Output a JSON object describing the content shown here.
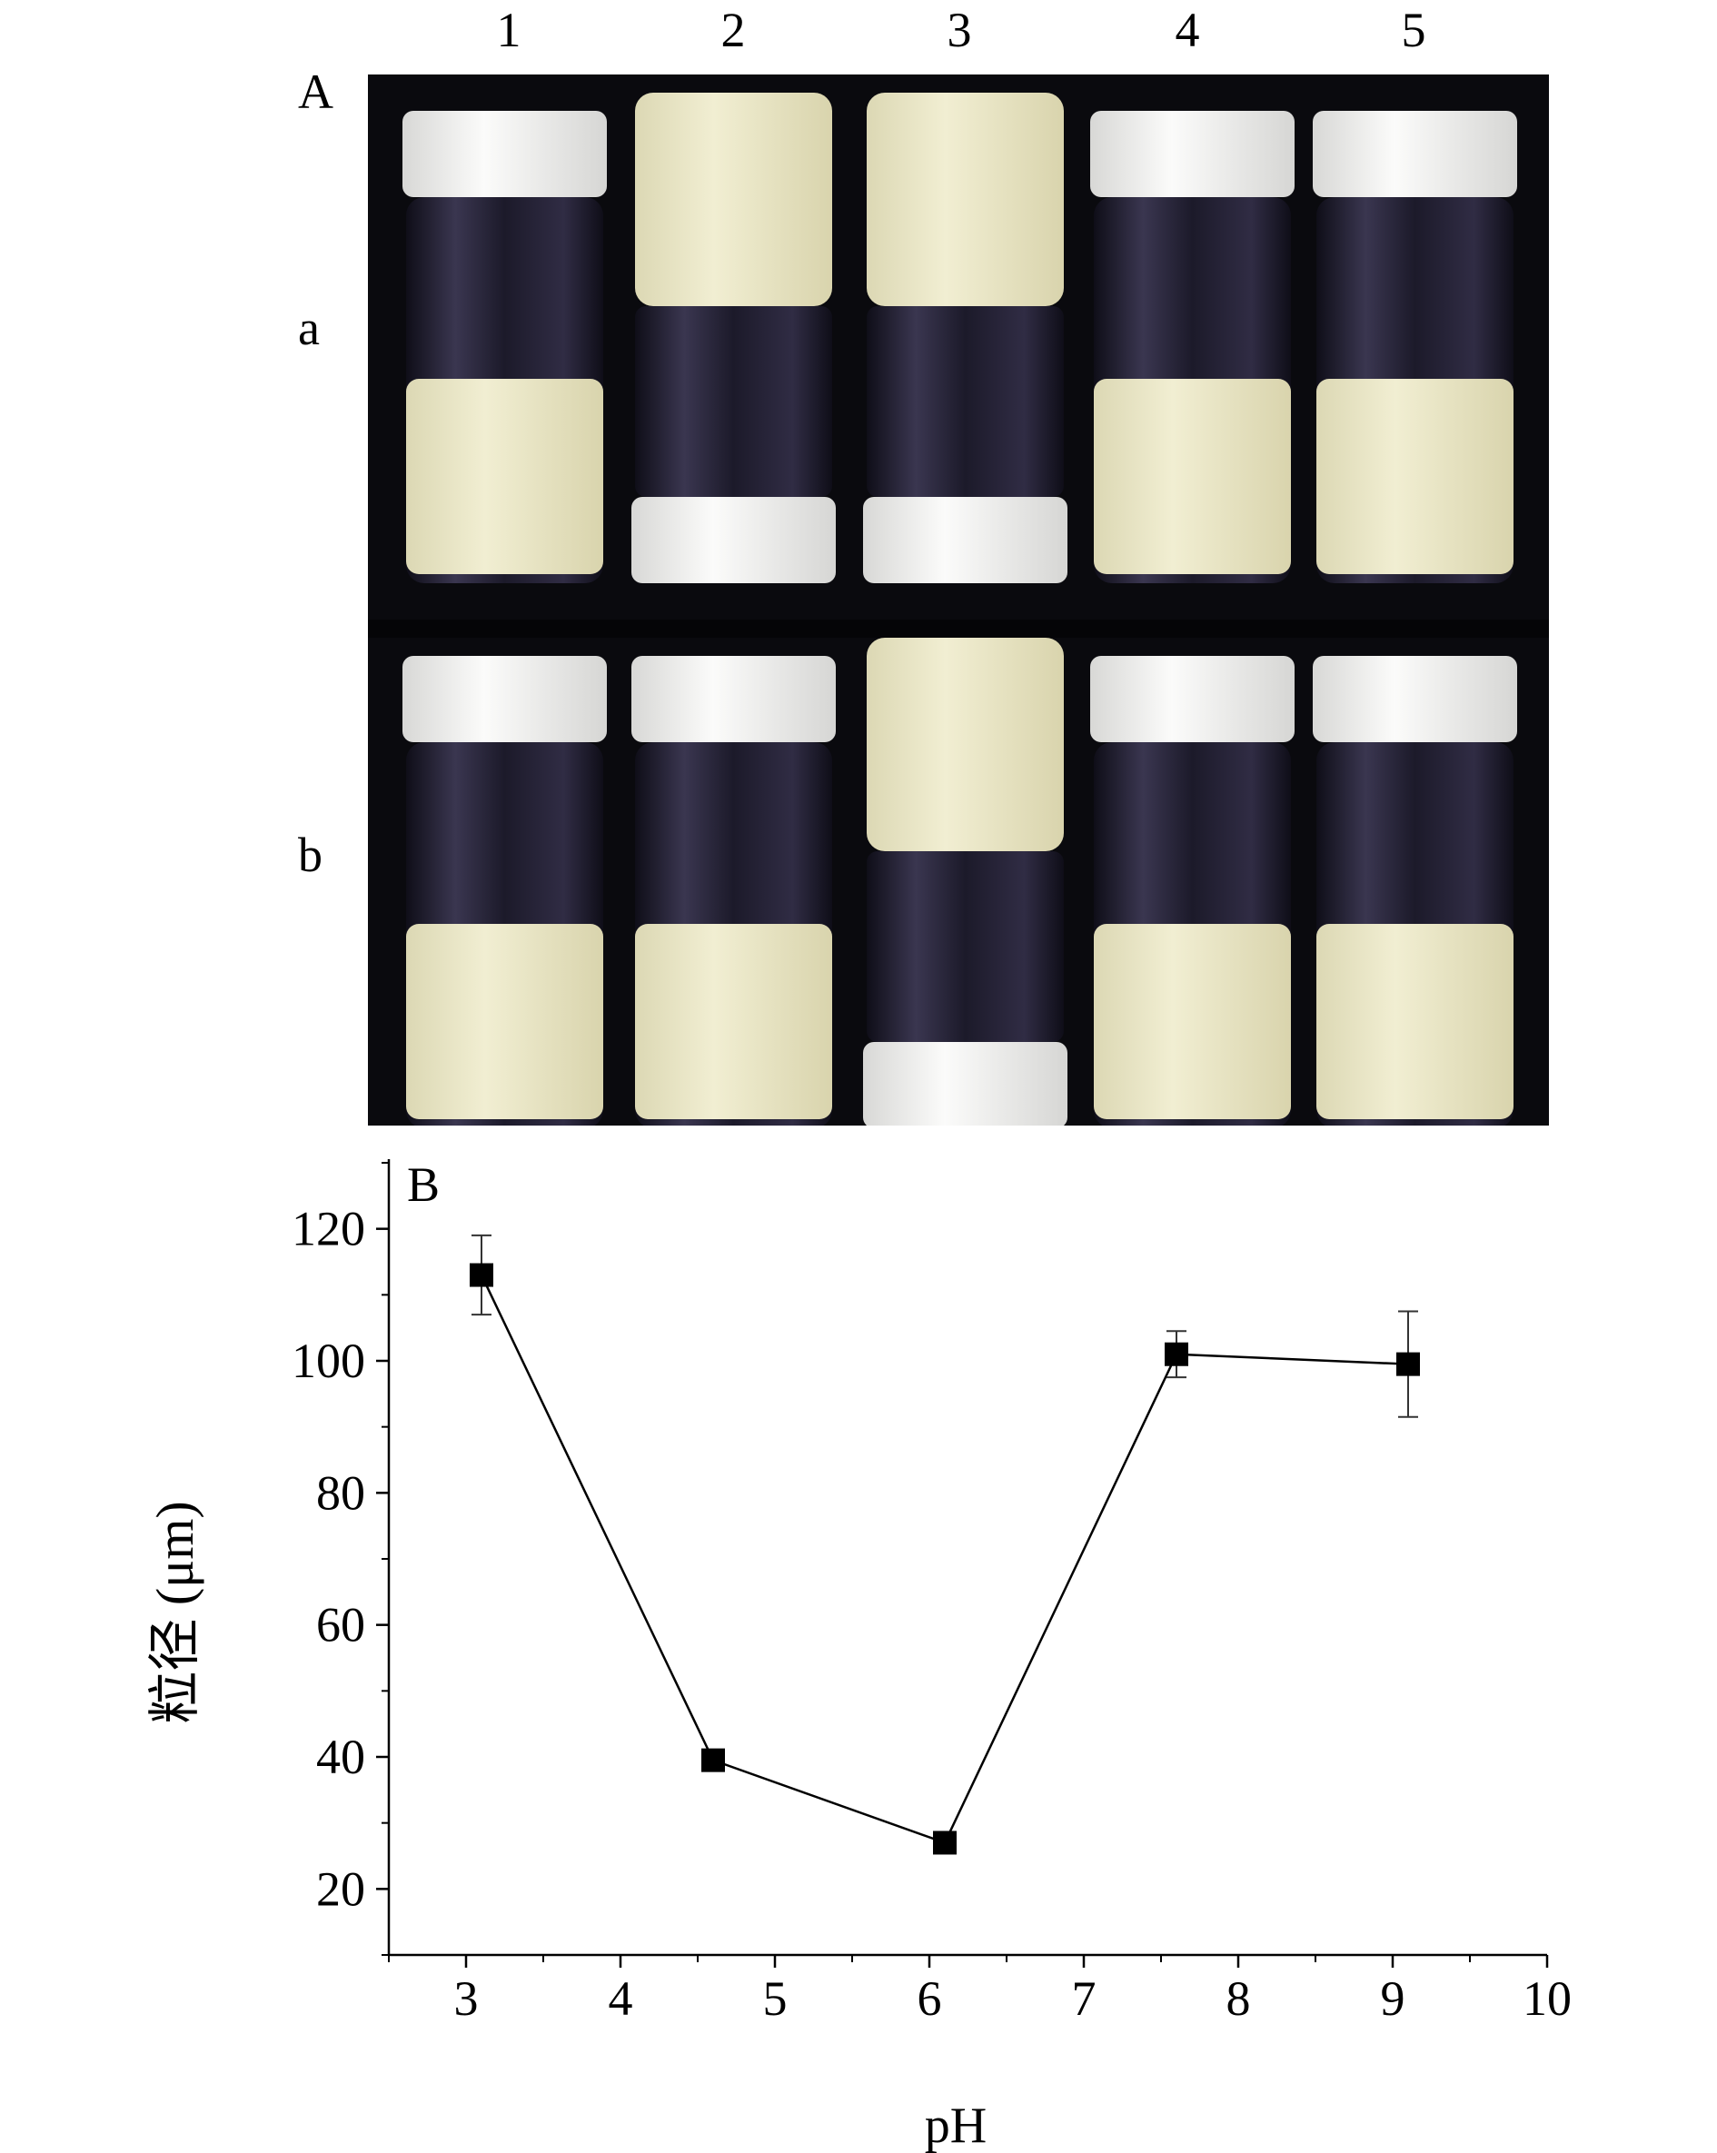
{
  "figure": {
    "panel_a_label": "A",
    "panel_b_label": "B",
    "column_labels": [
      "1",
      "2",
      "3",
      "4",
      "5"
    ],
    "row_labels": [
      "a",
      "b"
    ]
  },
  "photo": {
    "description_free": true,
    "rows": [
      {
        "row": "a",
        "vials": [
          {
            "col": "1",
            "state": "upright-emulsion-bottom"
          },
          {
            "col": "2",
            "state": "inverted-gel-top"
          },
          {
            "col": "3",
            "state": "inverted-gel-top"
          },
          {
            "col": "4",
            "state": "upright-emulsion-bottom"
          },
          {
            "col": "5",
            "state": "upright-emulsion-bottom"
          }
        ]
      },
      {
        "row": "b",
        "vials": [
          {
            "col": "1",
            "state": "upright-emulsion-bottom"
          },
          {
            "col": "2",
            "state": "upright-emulsion-bottom"
          },
          {
            "col": "3",
            "state": "inverted-gel-top"
          },
          {
            "col": "4",
            "state": "upright-emulsion-bottom"
          },
          {
            "col": "5",
            "state": "upright-emulsion-bottom"
          }
        ]
      }
    ],
    "colors": {
      "background": "#0a0a0e",
      "cap": "#f4f4f2",
      "emulsion": "#ece9c8",
      "gel": "#efeccf",
      "glass_dark": "#1c1a2a"
    }
  },
  "chart_data": {
    "type": "line",
    "xlabel": "pH",
    "ylabel": "粒径 (μm)",
    "xlim": [
      2.5,
      10
    ],
    "ylim": [
      10,
      130
    ],
    "xticks": [
      3,
      4,
      5,
      6,
      7,
      8,
      9,
      10
    ],
    "yticks": [
      20,
      40,
      60,
      80,
      100,
      120
    ],
    "grid": false,
    "series": [
      {
        "x": [
          3.1,
          4.6,
          6.1,
          7.6,
          9.1
        ],
        "y": [
          113,
          39.5,
          27,
          101,
          99.5
        ],
        "error": [
          6,
          0,
          0,
          3.5,
          8
        ],
        "marker": "square",
        "color": "#000000"
      }
    ]
  }
}
